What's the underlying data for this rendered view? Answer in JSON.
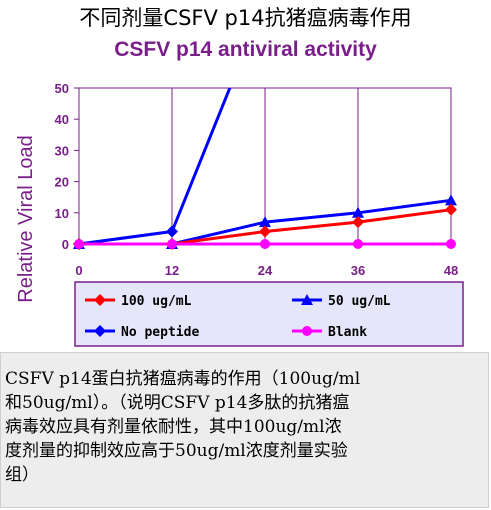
{
  "page": {
    "title_cn": "不同剂量CSFV p14抗猪瘟病毒作用",
    "title_en": "CSFV p14 antiviral activity",
    "caption_lines": [
      "CSFV p14蛋白抗猪瘟病毒的作用（100ug/ml",
      "和50ug/ml）。（说明CSFV p14多肽的抗猪瘟",
      "病毒效应具有剂量依耐性，其中100ug/ml浓",
      "度剂量的抑制效应高于50ug/ml浓度剂量实验",
      "组）"
    ]
  },
  "colors": {
    "title_en": "#7a1f8a",
    "axis_label": "#7a1f8a",
    "tick_label": "#7a1f8a",
    "plot_border": "#7a1f8a",
    "legend_bg": "#e6e6fa",
    "legend_border": "#7a1f8a"
  },
  "chart_data": {
    "type": "line",
    "xlabel": "",
    "ylabel": "Relative Viral Load",
    "xlim": [
      0,
      48
    ],
    "ylim": [
      0,
      50
    ],
    "xticks": [
      0,
      12,
      24,
      36,
      48
    ],
    "yticks": [
      0,
      10,
      20,
      30,
      40,
      50
    ],
    "vertical_grid": true,
    "horizontal_grid": false,
    "legend_position": "bottom",
    "series": [
      {
        "name": "100 ug/mL",
        "color": "#ff0000",
        "marker": "diamond",
        "x": [
          0,
          12,
          24,
          36,
          48
        ],
        "y": [
          0,
          0,
          4,
          7,
          11
        ]
      },
      {
        "name": "50 ug/mL",
        "color": "#0000ff",
        "marker": "triangle",
        "x": [
          0,
          12,
          24,
          36,
          48
        ],
        "y": [
          0,
          0,
          7,
          10,
          14
        ]
      },
      {
        "name": "No peptide",
        "color": "#0000ff",
        "marker": "diamond",
        "x": [
          0,
          12,
          24
        ],
        "y": [
          0,
          4,
          78
        ]
      },
      {
        "name": "Blank",
        "color": "#ff00ff",
        "marker": "circle",
        "x": [
          0,
          12,
          24,
          36,
          48
        ],
        "y": [
          0,
          0,
          0,
          0,
          0
        ]
      }
    ]
  }
}
